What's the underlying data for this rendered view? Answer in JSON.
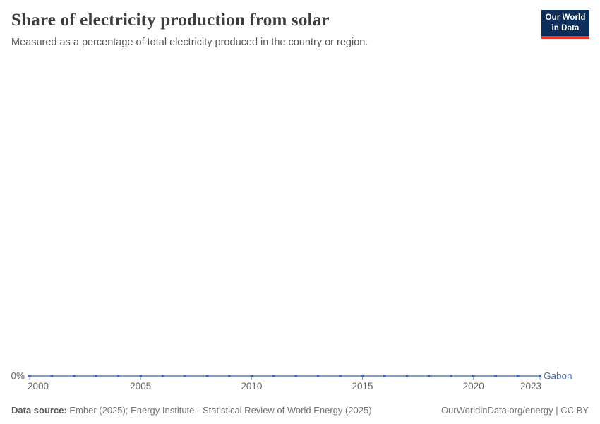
{
  "header": {
    "title": "Share of electricity production from solar",
    "subtitle": "Measured as a percentage of total electricity produced in the country or region.",
    "logo": {
      "line1": "Our World",
      "line2": "in Data"
    }
  },
  "chart_data": {
    "type": "line",
    "title": "Share of electricity production from solar",
    "xlabel": "",
    "ylabel": "",
    "x": [
      2000,
      2001,
      2002,
      2003,
      2004,
      2005,
      2006,
      2007,
      2008,
      2009,
      2010,
      2011,
      2012,
      2013,
      2014,
      2015,
      2016,
      2017,
      2018,
      2019,
      2020,
      2021,
      2022,
      2023
    ],
    "series": [
      {
        "name": "Gabon",
        "values": [
          0,
          0,
          0,
          0,
          0,
          0,
          0,
          0,
          0,
          0,
          0,
          0,
          0,
          0,
          0,
          0,
          0,
          0,
          0,
          0,
          0,
          0,
          0,
          0
        ]
      }
    ],
    "x_tick_labels": [
      "2000",
      "2005",
      "2010",
      "2015",
      "2020",
      "2023"
    ],
    "x_ticks": [
      2000,
      2005,
      2010,
      2015,
      2020,
      2023
    ],
    "y_tick_labels": [
      "0%"
    ],
    "ylim": [
      0,
      1
    ],
    "grid": false,
    "legend_position": "end-of-line"
  },
  "footer": {
    "datasource_label": "Data source:",
    "datasource_text": " Ember (2025); Energy Institute - Statistical Review of World Energy (2025)",
    "link": "OurWorldinData.org/energy | CC BY"
  },
  "colors": {
    "series_line": "#5b7fc0",
    "series_dot": "#4468ad",
    "entity_label": "#4c6fb1",
    "axis_text": "#666666",
    "tick_mark": "#8aa0c4",
    "logo_bg": "#0d2e5a",
    "logo_stripe": "#dc382c"
  }
}
